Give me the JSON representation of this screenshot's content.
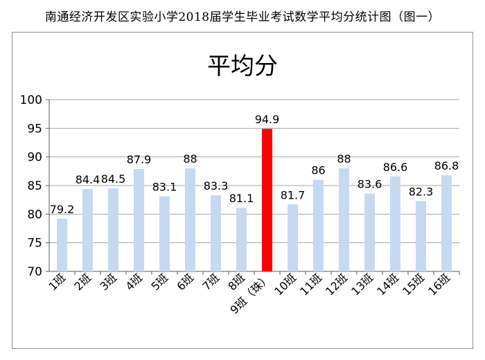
{
  "page_title": "南通经济开发区实验小学2018届学生毕业考试数学平均分统计图（图一）",
  "colors": {
    "bar": "#c6d9f1",
    "highlight": "#ff0000",
    "grid": "#a6a6a6",
    "axis": "#595959"
  },
  "chart_data": {
    "type": "bar",
    "title": "平均分",
    "xlabel": "",
    "ylabel": "",
    "ylim": [
      70,
      100
    ],
    "yticks": [
      70,
      75,
      80,
      85,
      90,
      95,
      100
    ],
    "grid": true,
    "legend": "none",
    "categories": [
      "1班",
      "2班",
      "3班",
      "4班",
      "5班",
      "6班",
      "7班",
      "8班",
      "9班（珠）",
      "10班",
      "11班",
      "12班",
      "13班",
      "14班",
      "15班",
      "16班"
    ],
    "values": [
      79.2,
      84.4,
      84.5,
      87.9,
      83.1,
      88,
      83.3,
      81.1,
      94.9,
      81.7,
      86,
      88,
      83.6,
      86.6,
      82.3,
      86.8
    ],
    "highlight_index": 8
  }
}
